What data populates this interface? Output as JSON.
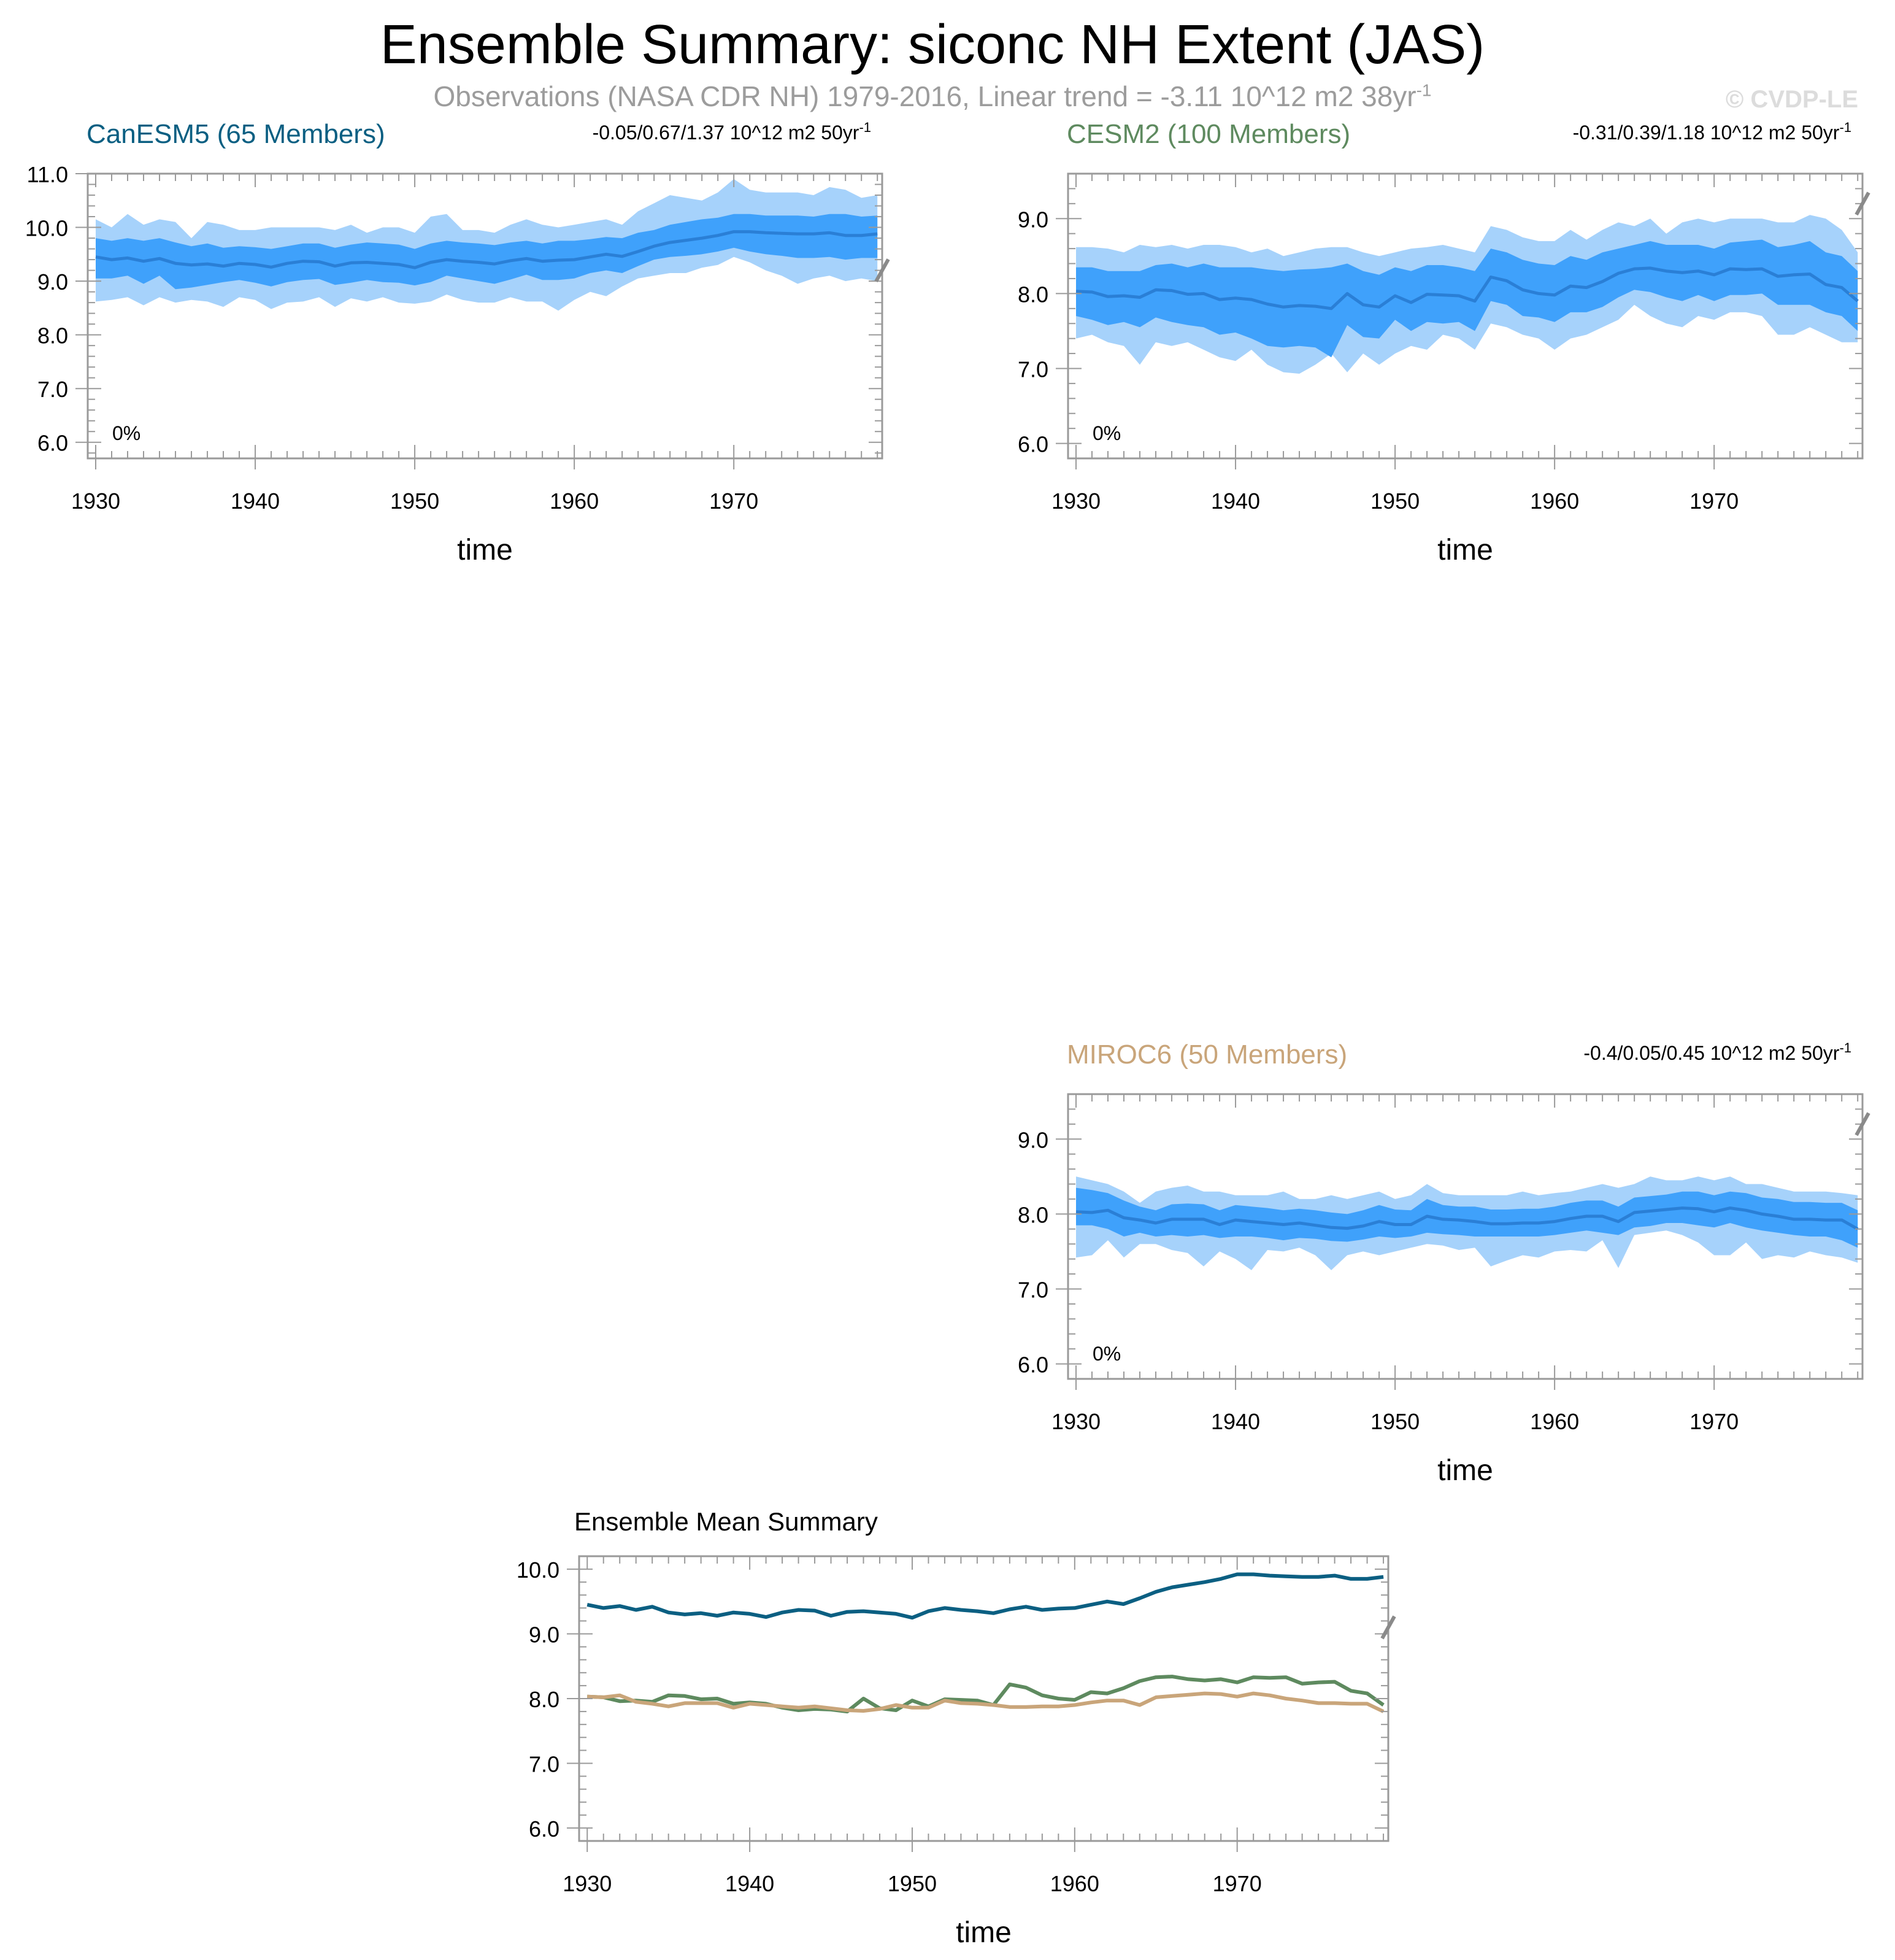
{
  "title": "Ensemble Summary: siconc NH Extent (JAS)",
  "subtitle": {
    "text": "Observations (NASA CDR NH) 1979-2016, Linear trend = -3.11 10^12 m2 38yr",
    "superscript": "-1"
  },
  "copyright": "© CVDP-LE",
  "colors": {
    "canesm5": "#0b5f82",
    "cesm2": "#5e8a5f",
    "miroc6": "#c9a57a",
    "band_outer": "#a6d2fb",
    "band_inner": "#3fa1fb",
    "mean_line": "#2a7fd6"
  },
  "chart_data": [
    {
      "type": "area",
      "id": "canesm5",
      "title": "CanESM5 (65 Members)",
      "title_color": "#0b5f82",
      "trend_label": "-0.05/0.67/1.37 10^12 m2 50yr",
      "trend_superscript": "-1",
      "annotation": "0%",
      "xlabel": "time",
      "xlim": [
        1929.5,
        1979.3
      ],
      "ylim": [
        5.7,
        11.0
      ],
      "yticks": [
        6.0,
        7.0,
        8.0,
        9.0,
        10.0,
        11.0
      ],
      "ytick_labels": [
        "6.0",
        "7.0",
        "8.0",
        "9.0",
        "10.0",
        "11.0"
      ],
      "xticks": [
        1930,
        1940,
        1950,
        1960,
        1970
      ],
      "xtick_labels": [
        "1930",
        "1940",
        "1950",
        "1960",
        "1970"
      ],
      "x": [
        1930,
        1931,
        1932,
        1933,
        1934,
        1935,
        1936,
        1937,
        1938,
        1939,
        1940,
        1941,
        1942,
        1943,
        1944,
        1945,
        1946,
        1947,
        1948,
        1949,
        1950,
        1951,
        1952,
        1953,
        1954,
        1955,
        1956,
        1957,
        1958,
        1959,
        1960,
        1961,
        1962,
        1963,
        1964,
        1965,
        1966,
        1967,
        1968,
        1969,
        1970,
        1971,
        1972,
        1973,
        1974,
        1975,
        1976,
        1977,
        1978,
        1979
      ],
      "mean": [
        9.45,
        9.4,
        9.43,
        9.37,
        9.42,
        9.33,
        9.3,
        9.32,
        9.28,
        9.33,
        9.31,
        9.26,
        9.33,
        9.37,
        9.36,
        9.28,
        9.34,
        9.35,
        9.33,
        9.31,
        9.25,
        9.35,
        9.4,
        9.37,
        9.35,
        9.32,
        9.38,
        9.42,
        9.37,
        9.39,
        9.4,
        9.45,
        9.5,
        9.46,
        9.55,
        9.65,
        9.72,
        9.76,
        9.8,
        9.85,
        9.92,
        9.92,
        9.9,
        9.89,
        9.88,
        9.88,
        9.9,
        9.85,
        9.85,
        9.88
      ],
      "q25": [
        9.05,
        9.05,
        9.1,
        8.95,
        9.1,
        8.85,
        8.88,
        8.93,
        8.98,
        9.02,
        8.97,
        8.9,
        8.98,
        9.02,
        9.04,
        8.93,
        8.97,
        9.02,
        8.98,
        8.97,
        8.92,
        8.98,
        9.1,
        9.05,
        9.0,
        8.95,
        9.03,
        9.12,
        9.02,
        9.02,
        9.05,
        9.15,
        9.2,
        9.15,
        9.28,
        9.4,
        9.45,
        9.47,
        9.5,
        9.55,
        9.62,
        9.55,
        9.5,
        9.47,
        9.43,
        9.43,
        9.45,
        9.4,
        9.43,
        9.43
      ],
      "q75": [
        9.8,
        9.75,
        9.8,
        9.75,
        9.8,
        9.72,
        9.65,
        9.7,
        9.62,
        9.65,
        9.63,
        9.6,
        9.65,
        9.7,
        9.7,
        9.62,
        9.68,
        9.72,
        9.7,
        9.68,
        9.6,
        9.7,
        9.75,
        9.72,
        9.7,
        9.67,
        9.72,
        9.75,
        9.7,
        9.75,
        9.75,
        9.78,
        9.82,
        9.8,
        9.9,
        9.95,
        10.05,
        10.1,
        10.15,
        10.18,
        10.25,
        10.25,
        10.22,
        10.22,
        10.22,
        10.2,
        10.25,
        10.25,
        10.2,
        10.22
      ],
      "lo": [
        8.62,
        8.65,
        8.7,
        8.55,
        8.7,
        8.6,
        8.65,
        8.62,
        8.52,
        8.7,
        8.65,
        8.48,
        8.6,
        8.62,
        8.7,
        8.52,
        8.68,
        8.62,
        8.7,
        8.6,
        8.58,
        8.62,
        8.75,
        8.65,
        8.6,
        8.6,
        8.7,
        8.62,
        8.62,
        8.45,
        8.65,
        8.8,
        8.72,
        8.9,
        9.05,
        9.1,
        9.15,
        9.15,
        9.25,
        9.3,
        9.45,
        9.35,
        9.2,
        9.1,
        8.95,
        9.05,
        9.1,
        9.0,
        9.05,
        9.0
      ],
      "hi": [
        10.15,
        10.0,
        10.25,
        10.05,
        10.15,
        10.1,
        9.8,
        10.1,
        10.05,
        9.95,
        9.95,
        10.0,
        10.0,
        10.0,
        10.0,
        9.95,
        10.05,
        9.9,
        10.0,
        10.0,
        9.9,
        10.2,
        10.25,
        9.95,
        9.95,
        9.9,
        10.05,
        10.15,
        10.05,
        10.0,
        10.05,
        10.1,
        10.15,
        10.05,
        10.3,
        10.45,
        10.6,
        10.55,
        10.5,
        10.65,
        10.9,
        10.7,
        10.65,
        10.65,
        10.65,
        10.6,
        10.75,
        10.7,
        10.55,
        10.6
      ]
    },
    {
      "type": "area",
      "id": "cesm2",
      "title": "CESM2 (100 Members)",
      "title_color": "#5e8a5f",
      "trend_label": "-0.31/0.39/1.18 10^12 m2 50yr",
      "trend_superscript": "-1",
      "annotation": "0%",
      "xlabel": "time",
      "xlim": [
        1929.5,
        1979.3
      ],
      "ylim": [
        5.8,
        9.6
      ],
      "yticks": [
        6.0,
        7.0,
        8.0,
        9.0
      ],
      "ytick_labels": [
        "6.0",
        "7.0",
        "8.0",
        "9.0"
      ],
      "xticks": [
        1930,
        1940,
        1950,
        1960,
        1970
      ],
      "xtick_labels": [
        "1930",
        "1940",
        "1950",
        "1960",
        "1970"
      ],
      "x": [
        1930,
        1931,
        1932,
        1933,
        1934,
        1935,
        1936,
        1937,
        1938,
        1939,
        1940,
        1941,
        1942,
        1943,
        1944,
        1945,
        1946,
        1947,
        1948,
        1949,
        1950,
        1951,
        1952,
        1953,
        1954,
        1955,
        1956,
        1957,
        1958,
        1959,
        1960,
        1961,
        1962,
        1963,
        1964,
        1965,
        1966,
        1967,
        1968,
        1969,
        1970,
        1971,
        1972,
        1973,
        1974,
        1975,
        1976,
        1977,
        1978,
        1979
      ],
      "mean": [
        8.03,
        8.02,
        7.96,
        7.97,
        7.95,
        8.05,
        8.04,
        7.99,
        8.0,
        7.92,
        7.94,
        7.92,
        7.86,
        7.82,
        7.84,
        7.83,
        7.8,
        8.0,
        7.85,
        7.82,
        7.97,
        7.88,
        7.99,
        7.98,
        7.97,
        7.9,
        8.22,
        8.17,
        8.05,
        8.0,
        7.98,
        8.1,
        8.08,
        8.16,
        8.27,
        8.33,
        8.34,
        8.3,
        8.28,
        8.3,
        8.25,
        8.33,
        8.32,
        8.33,
        8.23,
        8.25,
        8.26,
        8.12,
        8.08,
        7.9
      ],
      "q25": [
        7.7,
        7.65,
        7.58,
        7.62,
        7.55,
        7.68,
        7.62,
        7.58,
        7.55,
        7.45,
        7.48,
        7.4,
        7.3,
        7.28,
        7.3,
        7.28,
        7.15,
        7.58,
        7.42,
        7.4,
        7.65,
        7.5,
        7.62,
        7.6,
        7.62,
        7.5,
        7.9,
        7.85,
        7.7,
        7.68,
        7.62,
        7.75,
        7.75,
        7.82,
        7.95,
        8.05,
        8.02,
        7.95,
        7.9,
        7.98,
        7.9,
        7.98,
        7.98,
        8.0,
        7.85,
        7.85,
        7.85,
        7.75,
        7.7,
        7.5
      ],
      "q75": [
        8.35,
        8.35,
        8.3,
        8.3,
        8.3,
        8.38,
        8.4,
        8.35,
        8.4,
        8.35,
        8.35,
        8.35,
        8.32,
        8.3,
        8.32,
        8.33,
        8.35,
        8.4,
        8.3,
        8.25,
        8.35,
        8.3,
        8.38,
        8.38,
        8.35,
        8.3,
        8.6,
        8.55,
        8.45,
        8.4,
        8.38,
        8.5,
        8.45,
        8.55,
        8.6,
        8.65,
        8.7,
        8.65,
        8.65,
        8.65,
        8.6,
        8.68,
        8.7,
        8.72,
        8.62,
        8.65,
        8.7,
        8.55,
        8.5,
        8.3
      ],
      "lo": [
        7.4,
        7.45,
        7.35,
        7.3,
        7.05,
        7.35,
        7.3,
        7.35,
        7.25,
        7.15,
        7.1,
        7.25,
        7.05,
        6.95,
        6.93,
        7.05,
        7.2,
        6.95,
        7.2,
        7.05,
        7.2,
        7.3,
        7.25,
        7.45,
        7.4,
        7.25,
        7.6,
        7.55,
        7.45,
        7.4,
        7.25,
        7.4,
        7.45,
        7.55,
        7.65,
        7.85,
        7.7,
        7.6,
        7.55,
        7.7,
        7.65,
        7.75,
        7.75,
        7.7,
        7.45,
        7.45,
        7.55,
        7.45,
        7.35,
        7.35
      ],
      "hi": [
        8.62,
        8.62,
        8.6,
        8.55,
        8.65,
        8.62,
        8.65,
        8.6,
        8.65,
        8.65,
        8.62,
        8.55,
        8.6,
        8.5,
        8.55,
        8.6,
        8.62,
        8.62,
        8.55,
        8.5,
        8.55,
        8.6,
        8.62,
        8.65,
        8.6,
        8.55,
        8.9,
        8.85,
        8.75,
        8.7,
        8.7,
        8.85,
        8.72,
        8.85,
        8.95,
        8.9,
        9.0,
        8.8,
        8.95,
        9.0,
        8.95,
        9.0,
        9.0,
        9.0,
        8.95,
        8.95,
        9.05,
        9.0,
        8.85,
        8.55
      ]
    },
    {
      "type": "area",
      "id": "miroc6",
      "title": "MIROC6 (50 Members)",
      "title_color": "#c9a57a",
      "trend_label": "-0.4/0.05/0.45 10^12 m2 50yr",
      "trend_superscript": "-1",
      "annotation": "0%",
      "xlabel": "time",
      "xlim": [
        1929.5,
        1979.3
      ],
      "ylim": [
        5.8,
        9.6
      ],
      "yticks": [
        6.0,
        7.0,
        8.0,
        9.0
      ],
      "ytick_labels": [
        "6.0",
        "7.0",
        "8.0",
        "9.0"
      ],
      "xticks": [
        1930,
        1940,
        1950,
        1960,
        1970
      ],
      "xtick_labels": [
        "1930",
        "1940",
        "1950",
        "1960",
        "1970"
      ],
      "x": [
        1930,
        1931,
        1932,
        1933,
        1934,
        1935,
        1936,
        1937,
        1938,
        1939,
        1940,
        1941,
        1942,
        1943,
        1944,
        1945,
        1946,
        1947,
        1948,
        1949,
        1950,
        1951,
        1952,
        1953,
        1954,
        1955,
        1956,
        1957,
        1958,
        1959,
        1960,
        1961,
        1962,
        1963,
        1964,
        1965,
        1966,
        1967,
        1968,
        1969,
        1970,
        1971,
        1972,
        1973,
        1974,
        1975,
        1976,
        1977,
        1978,
        1979
      ],
      "mean": [
        8.03,
        8.02,
        8.05,
        7.95,
        7.92,
        7.88,
        7.93,
        7.93,
        7.93,
        7.86,
        7.92,
        7.9,
        7.88,
        7.86,
        7.88,
        7.85,
        7.82,
        7.81,
        7.84,
        7.9,
        7.86,
        7.86,
        7.97,
        7.93,
        7.92,
        7.9,
        7.87,
        7.87,
        7.88,
        7.88,
        7.9,
        7.94,
        7.97,
        7.97,
        7.9,
        8.02,
        8.04,
        8.06,
        8.08,
        8.07,
        8.03,
        8.08,
        8.05,
        8.0,
        7.97,
        7.93,
        7.93,
        7.92,
        7.92,
        7.8
      ],
      "q25": [
        7.85,
        7.85,
        7.8,
        7.7,
        7.75,
        7.7,
        7.72,
        7.7,
        7.72,
        7.68,
        7.7,
        7.7,
        7.68,
        7.65,
        7.68,
        7.67,
        7.64,
        7.63,
        7.66,
        7.7,
        7.68,
        7.7,
        7.75,
        7.73,
        7.72,
        7.7,
        7.7,
        7.7,
        7.7,
        7.7,
        7.72,
        7.75,
        7.78,
        7.75,
        7.72,
        7.82,
        7.84,
        7.88,
        7.88,
        7.85,
        7.82,
        7.88,
        7.82,
        7.78,
        7.75,
        7.72,
        7.7,
        7.7,
        7.65,
        7.55
      ],
      "q75": [
        8.35,
        8.32,
        8.28,
        8.18,
        8.1,
        8.05,
        8.13,
        8.14,
        8.13,
        8.05,
        8.12,
        8.1,
        8.08,
        8.05,
        8.07,
        8.05,
        8.02,
        8.0,
        8.05,
        8.12,
        8.06,
        8.05,
        8.2,
        8.12,
        8.1,
        8.1,
        8.06,
        8.06,
        8.07,
        8.07,
        8.1,
        8.15,
        8.18,
        8.18,
        8.1,
        8.22,
        8.24,
        8.26,
        8.3,
        8.3,
        8.25,
        8.3,
        8.28,
        8.22,
        8.2,
        8.16,
        8.16,
        8.15,
        8.15,
        8.05
      ],
      "lo": [
        7.42,
        7.45,
        7.65,
        7.42,
        7.6,
        7.6,
        7.52,
        7.48,
        7.3,
        7.5,
        7.4,
        7.25,
        7.52,
        7.5,
        7.55,
        7.45,
        7.25,
        7.45,
        7.5,
        7.45,
        7.5,
        7.55,
        7.6,
        7.58,
        7.52,
        7.55,
        7.3,
        7.38,
        7.45,
        7.42,
        7.5,
        7.52,
        7.5,
        7.65,
        7.28,
        7.72,
        7.75,
        7.78,
        7.72,
        7.62,
        7.45,
        7.45,
        7.62,
        7.4,
        7.45,
        7.42,
        7.5,
        7.45,
        7.42,
        7.35
      ],
      "hi": [
        8.5,
        8.45,
        8.4,
        8.3,
        8.15,
        8.3,
        8.35,
        8.38,
        8.3,
        8.3,
        8.25,
        8.25,
        8.25,
        8.3,
        8.2,
        8.2,
        8.25,
        8.2,
        8.25,
        8.3,
        8.2,
        8.25,
        8.4,
        8.28,
        8.25,
        8.25,
        8.25,
        8.25,
        8.3,
        8.25,
        8.28,
        8.3,
        8.35,
        8.4,
        8.35,
        8.4,
        8.5,
        8.45,
        8.45,
        8.5,
        8.45,
        8.5,
        8.4,
        8.4,
        8.35,
        8.3,
        8.3,
        8.3,
        8.28,
        8.25
      ]
    },
    {
      "type": "line",
      "id": "mean",
      "title": "Ensemble Mean Summary",
      "xlabel": "time",
      "xlim": [
        1929.5,
        1979.3
      ],
      "ylim": [
        5.8,
        10.2
      ],
      "yticks": [
        6.0,
        7.0,
        8.0,
        9.0,
        10.0
      ],
      "ytick_labels": [
        "6.0",
        "7.0",
        "8.0",
        "9.0",
        "10.0"
      ],
      "xticks": [
        1930,
        1940,
        1950,
        1960,
        1970
      ],
      "xtick_labels": [
        "1930",
        "1940",
        "1950",
        "1960",
        "1970"
      ],
      "x": [
        1930,
        1931,
        1932,
        1933,
        1934,
        1935,
        1936,
        1937,
        1938,
        1939,
        1940,
        1941,
        1942,
        1943,
        1944,
        1945,
        1946,
        1947,
        1948,
        1949,
        1950,
        1951,
        1952,
        1953,
        1954,
        1955,
        1956,
        1957,
        1958,
        1959,
        1960,
        1961,
        1962,
        1963,
        1964,
        1965,
        1966,
        1967,
        1968,
        1969,
        1970,
        1971,
        1972,
        1973,
        1974,
        1975,
        1976,
        1977,
        1978,
        1979
      ],
      "series": [
        {
          "name": "CanESM5",
          "color": "#0b5f82",
          "values": [
            9.45,
            9.4,
            9.43,
            9.37,
            9.42,
            9.33,
            9.3,
            9.32,
            9.28,
            9.33,
            9.31,
            9.26,
            9.33,
            9.37,
            9.36,
            9.28,
            9.34,
            9.35,
            9.33,
            9.31,
            9.25,
            9.35,
            9.4,
            9.37,
            9.35,
            9.32,
            9.38,
            9.42,
            9.37,
            9.39,
            9.4,
            9.45,
            9.5,
            9.46,
            9.55,
            9.65,
            9.72,
            9.76,
            9.8,
            9.85,
            9.92,
            9.92,
            9.9,
            9.89,
            9.88,
            9.88,
            9.9,
            9.85,
            9.85,
            9.88
          ]
        },
        {
          "name": "CESM2",
          "color": "#5e8a5f",
          "values": [
            8.03,
            8.02,
            7.96,
            7.97,
            7.95,
            8.05,
            8.04,
            7.99,
            8.0,
            7.92,
            7.94,
            7.92,
            7.86,
            7.82,
            7.84,
            7.83,
            7.8,
            8.0,
            7.85,
            7.82,
            7.97,
            7.88,
            7.99,
            7.98,
            7.97,
            7.9,
            8.22,
            8.17,
            8.05,
            8.0,
            7.98,
            8.1,
            8.08,
            8.16,
            8.27,
            8.33,
            8.34,
            8.3,
            8.28,
            8.3,
            8.25,
            8.33,
            8.32,
            8.33,
            8.23,
            8.25,
            8.26,
            8.12,
            8.08,
            7.9
          ]
        },
        {
          "name": "MIROC6",
          "color": "#c9a57a",
          "values": [
            8.03,
            8.02,
            8.05,
            7.95,
            7.92,
            7.88,
            7.93,
            7.93,
            7.93,
            7.86,
            7.92,
            7.9,
            7.88,
            7.86,
            7.88,
            7.85,
            7.82,
            7.81,
            7.84,
            7.9,
            7.86,
            7.86,
            7.97,
            7.93,
            7.92,
            7.9,
            7.87,
            7.87,
            7.88,
            7.88,
            7.9,
            7.94,
            7.97,
            7.97,
            7.9,
            8.02,
            8.04,
            8.06,
            8.08,
            8.07,
            8.03,
            8.08,
            8.05,
            8.0,
            7.97,
            7.93,
            7.93,
            7.92,
            7.92,
            7.8
          ]
        }
      ]
    }
  ]
}
